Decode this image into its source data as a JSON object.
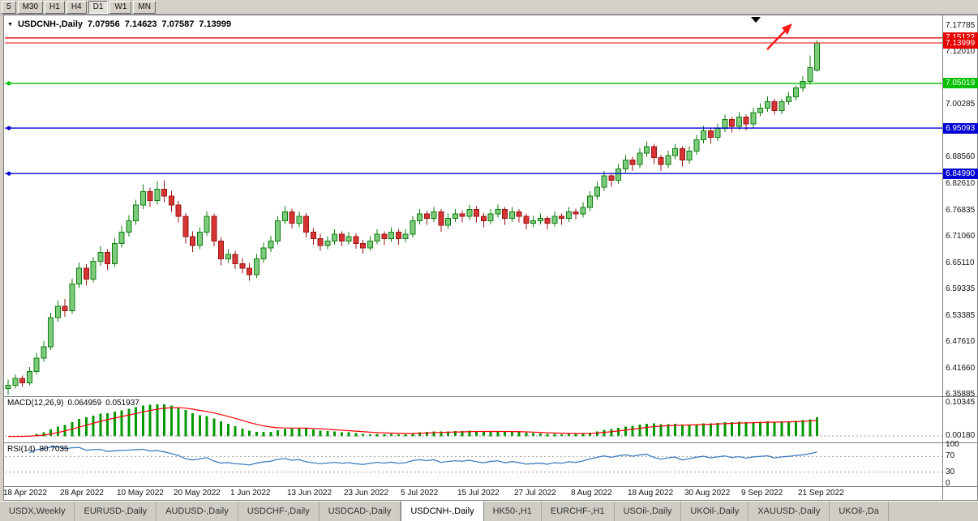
{
  "toolbar": {
    "periods": [
      {
        "label": "5"
      },
      {
        "label": "M30"
      },
      {
        "label": "H1"
      },
      {
        "label": "H4"
      },
      {
        "label": "D1",
        "active": true
      },
      {
        "label": "W1"
      },
      {
        "label": "MN"
      }
    ]
  },
  "chart_header": {
    "symbol": "USDCNH-,Daily",
    "open": "7.07956",
    "high": "7.14623",
    "low": "7.07587",
    "close": "7.13999"
  },
  "chart_data": {
    "type": "candlestick",
    "symbol": "USDCNH-",
    "timeframe": "Daily",
    "ylim": [
      6.35885,
      7.17785
    ],
    "y_axis_ticks": [
      "7.17785",
      "7.12010",
      "7.00285",
      "6.88560",
      "6.82610",
      "6.76835",
      "6.71060",
      "6.65110",
      "6.59335",
      "6.53385",
      "6.47610",
      "6.41660",
      "6.35885"
    ],
    "x_tick_labels": [
      "18 Apr 2022",
      "28 Apr 2022",
      "10 May 2022",
      "20 May 2022",
      "1 Jun 2022",
      "13 Jun 2022",
      "23 Jun 2022",
      "5 Jul 2022",
      "15 Jul 2022",
      "27 Jul 2022",
      "8 Aug 2022",
      "18 Aug 2022",
      "30 Aug 2022",
      "9 Sep 2022",
      "21 Sep 2022"
    ],
    "bars_per_x_tick": 8,
    "current_bar": {
      "open": 7.07956,
      "high": 7.14623,
      "low": 7.07587,
      "close": 7.13999
    },
    "hlines": [
      {
        "price": 7.15122,
        "color": "#e60000",
        "label": "7.15122",
        "kind": "resistance-line",
        "marker": false
      },
      {
        "price": 7.13999,
        "color": "#e60000",
        "label": "7.13999",
        "kind": "bid-price-line",
        "marker": false
      },
      {
        "price": 7.05019,
        "color": "#00c000",
        "label": "7.05019",
        "kind": "support-line-green",
        "marker": true
      },
      {
        "price": 6.95093,
        "color": "#0000d2",
        "label": "6.95093",
        "kind": "support-line-blue-1",
        "marker": true
      },
      {
        "price": 6.8499,
        "color": "#0000d2",
        "label": "6.84990",
        "kind": "support-line-blue-2",
        "marker": true
      }
    ],
    "candles": [
      [
        6.372,
        6.392,
        6.358,
        6.38
      ],
      [
        6.38,
        6.404,
        6.372,
        6.395
      ],
      [
        6.395,
        6.401,
        6.376,
        6.385
      ],
      [
        6.385,
        6.42,
        6.38,
        6.41
      ],
      [
        6.41,
        6.452,
        6.404,
        6.44
      ],
      [
        6.44,
        6.478,
        6.432,
        6.465
      ],
      [
        6.465,
        6.541,
        6.458,
        6.53
      ],
      [
        6.53,
        6.568,
        6.52,
        6.555
      ],
      [
        6.555,
        6.571,
        6.532,
        6.545
      ],
      [
        6.545,
        6.616,
        6.538,
        6.605
      ],
      [
        6.605,
        6.652,
        6.596,
        6.64
      ],
      [
        6.64,
        6.649,
        6.601,
        6.615
      ],
      [
        6.615,
        6.664,
        6.608,
        6.655
      ],
      [
        6.655,
        6.688,
        6.645,
        6.675
      ],
      [
        6.675,
        6.682,
        6.636,
        6.65
      ],
      [
        6.65,
        6.706,
        6.642,
        6.695
      ],
      [
        6.695,
        6.734,
        6.686,
        6.72
      ],
      [
        6.72,
        6.758,
        6.71,
        6.745
      ],
      [
        6.745,
        6.792,
        6.736,
        6.78
      ],
      [
        6.78,
        6.826,
        6.771,
        6.81
      ],
      [
        6.81,
        6.819,
        6.776,
        6.79
      ],
      [
        6.79,
        6.832,
        6.781,
        6.815
      ],
      [
        6.815,
        6.835,
        6.786,
        6.8
      ],
      [
        6.8,
        6.812,
        6.765,
        6.78
      ],
      [
        6.78,
        6.789,
        6.741,
        6.755
      ],
      [
        6.755,
        6.762,
        6.695,
        6.71
      ],
      [
        6.71,
        6.722,
        6.676,
        6.69
      ],
      [
        6.69,
        6.731,
        6.682,
        6.72
      ],
      [
        6.72,
        6.766,
        6.712,
        6.755
      ],
      [
        6.755,
        6.761,
        6.688,
        6.7
      ],
      [
        6.7,
        6.709,
        6.646,
        6.66
      ],
      [
        6.66,
        6.682,
        6.651,
        6.67
      ],
      [
        6.67,
        6.678,
        6.638,
        6.65
      ],
      [
        6.65,
        6.662,
        6.629,
        6.64
      ],
      [
        6.64,
        6.651,
        6.612,
        6.625
      ],
      [
        6.625,
        6.671,
        6.618,
        6.66
      ],
      [
        6.66,
        6.696,
        6.652,
        6.685
      ],
      [
        6.685,
        6.712,
        6.676,
        6.7
      ],
      [
        6.7,
        6.756,
        6.693,
        6.745
      ],
      [
        6.745,
        6.777,
        6.737,
        6.765
      ],
      [
        6.765,
        6.772,
        6.728,
        6.74
      ],
      [
        6.74,
        6.766,
        6.731,
        6.755
      ],
      [
        6.755,
        6.762,
        6.708,
        6.72
      ],
      [
        6.72,
        6.729,
        6.692,
        6.705
      ],
      [
        6.705,
        6.716,
        6.678,
        6.69
      ],
      [
        6.69,
        6.711,
        6.682,
        6.7
      ],
      [
        6.7,
        6.726,
        6.692,
        6.715
      ],
      [
        6.715,
        6.722,
        6.688,
        6.7
      ],
      [
        6.7,
        6.721,
        6.692,
        6.71
      ],
      [
        6.71,
        6.717,
        6.683,
        6.695
      ],
      [
        6.695,
        6.703,
        6.672,
        6.685
      ],
      [
        6.685,
        6.711,
        6.678,
        6.7
      ],
      [
        6.7,
        6.726,
        6.693,
        6.715
      ],
      [
        6.715,
        6.722,
        6.691,
        6.705
      ],
      [
        6.705,
        6.731,
        6.698,
        6.72
      ],
      [
        6.72,
        6.727,
        6.692,
        6.705
      ],
      [
        6.705,
        6.726,
        6.697,
        6.715
      ],
      [
        6.715,
        6.756,
        6.708,
        6.745
      ],
      [
        6.745,
        6.771,
        6.737,
        6.76
      ],
      [
        6.76,
        6.767,
        6.736,
        6.75
      ],
      [
        6.75,
        6.776,
        6.742,
        6.765
      ],
      [
        6.765,
        6.771,
        6.721,
        6.735
      ],
      [
        6.735,
        6.761,
        6.727,
        6.75
      ],
      [
        6.75,
        6.771,
        6.742,
        6.76
      ],
      [
        6.76,
        6.768,
        6.741,
        6.755
      ],
      [
        6.755,
        6.781,
        6.747,
        6.77
      ],
      [
        6.77,
        6.777,
        6.741,
        6.755
      ],
      [
        6.755,
        6.762,
        6.731,
        6.745
      ],
      [
        6.745,
        6.771,
        6.737,
        6.76
      ],
      [
        6.76,
        6.781,
        6.752,
        6.77
      ],
      [
        6.77,
        6.776,
        6.736,
        6.75
      ],
      [
        6.75,
        6.776,
        6.742,
        6.765
      ],
      [
        6.765,
        6.771,
        6.741,
        6.755
      ],
      [
        6.755,
        6.761,
        6.726,
        6.74
      ],
      [
        6.74,
        6.756,
        6.731,
        6.745
      ],
      [
        6.745,
        6.761,
        6.737,
        6.75
      ],
      [
        6.75,
        6.756,
        6.726,
        6.74
      ],
      [
        6.74,
        6.766,
        6.732,
        6.755
      ],
      [
        6.755,
        6.761,
        6.736,
        6.75
      ],
      [
        6.75,
        6.776,
        6.742,
        6.765
      ],
      [
        6.765,
        6.772,
        6.748,
        6.76
      ],
      [
        6.76,
        6.786,
        6.752,
        6.775
      ],
      [
        6.775,
        6.811,
        6.767,
        6.8
      ],
      [
        6.8,
        6.831,
        6.792,
        6.82
      ],
      [
        6.82,
        6.856,
        6.812,
        6.845
      ],
      [
        6.845,
        6.851,
        6.821,
        6.835
      ],
      [
        6.835,
        6.871,
        6.827,
        6.86
      ],
      [
        6.86,
        6.891,
        6.852,
        6.88
      ],
      [
        6.88,
        6.887,
        6.856,
        6.87
      ],
      [
        6.87,
        6.906,
        6.862,
        6.895
      ],
      [
        6.895,
        6.921,
        6.887,
        6.91
      ],
      [
        6.91,
        6.916,
        6.871,
        6.885
      ],
      [
        6.885,
        6.892,
        6.856,
        6.87
      ],
      [
        6.87,
        6.901,
        6.862,
        6.89
      ],
      [
        6.89,
        6.916,
        6.882,
        6.905
      ],
      [
        6.905,
        6.911,
        6.866,
        6.88
      ],
      [
        6.88,
        6.911,
        6.872,
        6.9
      ],
      [
        6.9,
        6.936,
        6.892,
        6.925
      ],
      [
        6.925,
        6.956,
        6.917,
        6.945
      ],
      [
        6.945,
        6.951,
        6.916,
        6.93
      ],
      [
        6.93,
        6.961,
        6.922,
        6.95
      ],
      [
        6.95,
        6.981,
        6.942,
        6.97
      ],
      [
        6.97,
        6.976,
        6.941,
        6.955
      ],
      [
        6.955,
        6.986,
        6.947,
        6.975
      ],
      [
        6.975,
        6.981,
        6.946,
        6.96
      ],
      [
        6.96,
        6.996,
        6.952,
        6.985
      ],
      [
        6.985,
        7.006,
        6.977,
        6.995
      ],
      [
        6.995,
        7.021,
        6.987,
        7.01
      ],
      [
        7.01,
        7.016,
        6.981,
        6.99
      ],
      [
        6.99,
        7.016,
        6.982,
        7.01
      ],
      [
        7.01,
        7.031,
        7.002,
        7.02
      ],
      [
        7.02,
        7.046,
        7.012,
        7.04
      ],
      [
        7.04,
        7.066,
        7.032,
        7.055
      ],
      [
        7.055,
        7.112,
        7.047,
        7.085
      ],
      [
        7.07956,
        7.14623,
        7.07587,
        7.13999
      ]
    ],
    "indicators": {
      "macd": {
        "label": "MACD(12,26,9)",
        "main_value": "0.064959",
        "signal_value": "0.051937",
        "fast": 12,
        "slow": 26,
        "signal": 9,
        "axis_ticks": [
          "0.10345",
          "0.00180"
        ],
        "histogram_color": "#009900",
        "signal_color": "#ff0000"
      },
      "rsi": {
        "label": "RSI(14)",
        "value": "80.7035",
        "period": 14,
        "axis_ticks": [
          100,
          70,
          30,
          0
        ],
        "levels": [
          70,
          30
        ],
        "line_color": "#3f7fc1"
      }
    }
  },
  "annotations": {
    "triangle_color": "#000000",
    "arrow_color": "#ff1a1a"
  },
  "tabs": {
    "items": [
      "USDX,Weekly",
      "EURUSD-,Daily",
      "AUDUSD-,Daily",
      "USDCHF-,Daily",
      "USDCAD-,Daily",
      "USDCNH-,Daily",
      "HK50-,H1",
      "EURCHF-,H1",
      "USOil-,Daily",
      "UKOil-,Daily",
      "XAUUSD-,Daily",
      "UKOil-,Da"
    ],
    "active": "USDCNH-,Daily"
  },
  "colors": {
    "bull": {
      "fill": "#7ccc7c",
      "border": "#0f7d0f"
    },
    "bear": {
      "fill": "#d63535",
      "border": "#9c1414"
    },
    "chrome": "#d4d0c8",
    "border": "#808080",
    "dashed_level": "#999999"
  }
}
